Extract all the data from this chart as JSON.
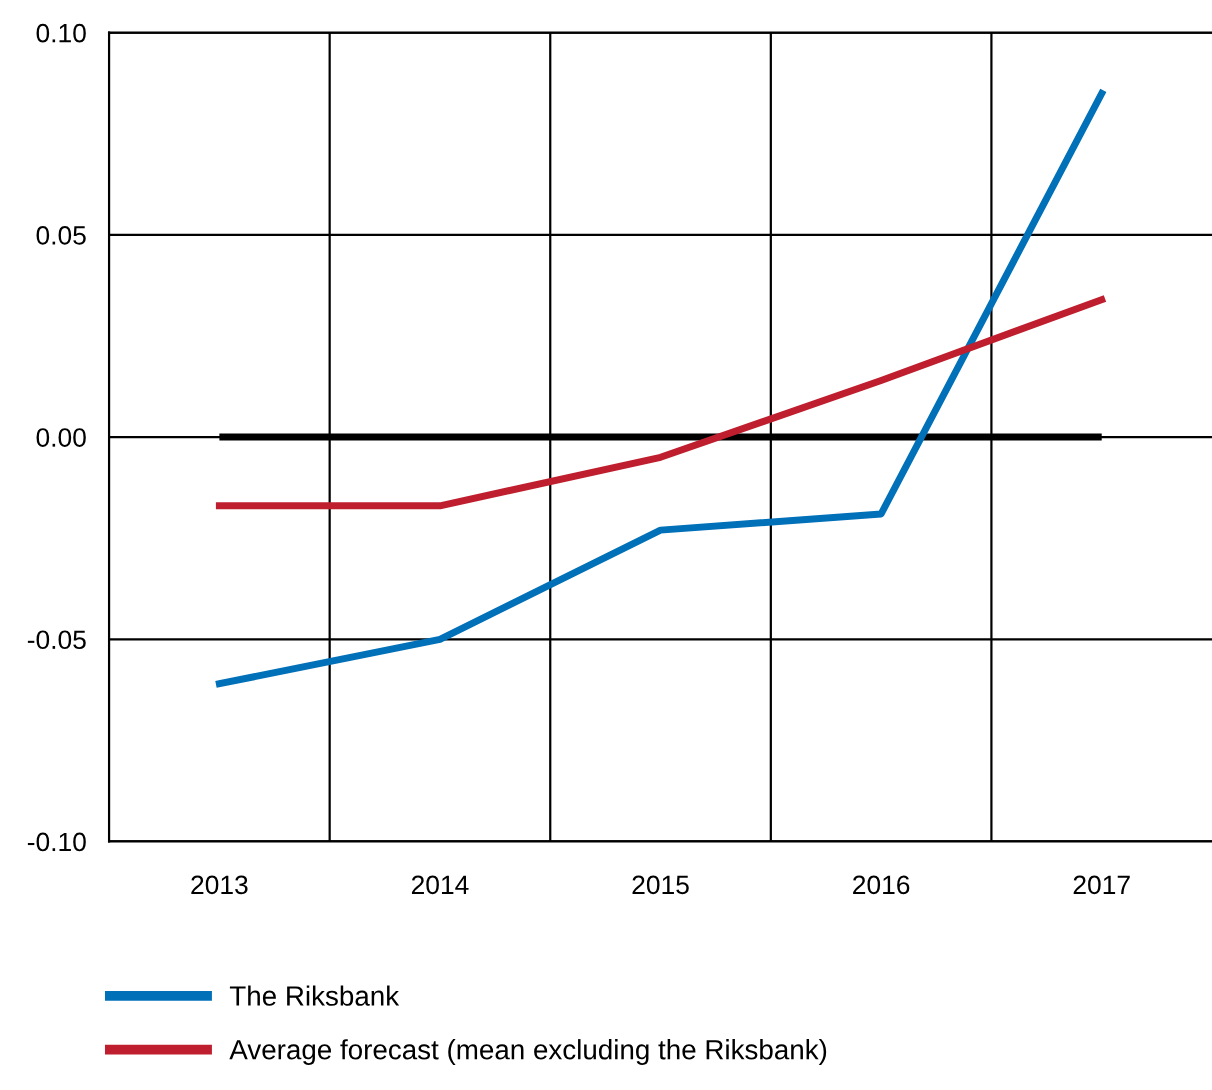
{
  "chart_data": {
    "type": "line",
    "categories": [
      "2013",
      "2014",
      "2015",
      "2016",
      "2017"
    ],
    "series": [
      {
        "name": "The Riksbank",
        "color": "#0070b8",
        "values": [
          -0.061,
          -0.05,
          -0.023,
          -0.019,
          0.085
        ]
      },
      {
        "name": "Average forecast (mean excluding the Riksbank)",
        "color": "#bf1e2e",
        "values": [
          -0.017,
          -0.017,
          -0.005,
          0.014,
          0.034
        ]
      }
    ],
    "ylim": [
      -0.1,
      0.1
    ],
    "yticks": [
      {
        "value": -0.1,
        "label": "-0.10"
      },
      {
        "value": -0.05,
        "label": "-0.05"
      },
      {
        "value": 0,
        "label": "0.00"
      },
      {
        "value": 0.05,
        "label": "0.05"
      },
      {
        "value": 0.1,
        "label": "0.10"
      }
    ],
    "ref_lines": [
      {
        "axis": "y",
        "value": 0,
        "color": "#000000"
      }
    ],
    "grid": true,
    "legend": "bottom",
    "marker": "none",
    "line_style": "solid"
  }
}
